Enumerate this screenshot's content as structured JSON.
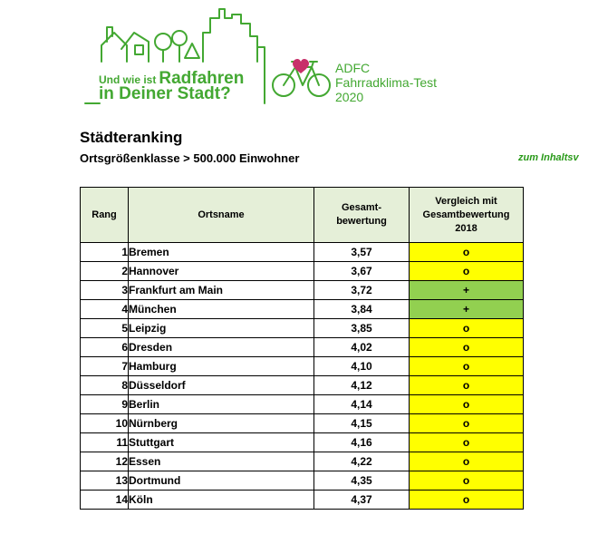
{
  "logo": {
    "tagline_prefix": "Und wie ist",
    "tagline_highlight": "Radfahren",
    "tagline_line2": "in Deiner Stadt?",
    "adfc_line1": "ADFC",
    "adfc_line2": "Fahrradklima-Test",
    "adfc_line3": "2020",
    "green": "#43a832",
    "heart": "#c8306a"
  },
  "title": "Städteranking",
  "subtitle": "Ortsgrößenklasse > 500.000 Einwohner",
  "toc_link": "zum Inhaltsv",
  "table": {
    "headers": {
      "rank": "Rang",
      "name": "Ortsname",
      "score": "Gesamt-\nbewertung",
      "comparison": "Vergleich mit\nGesamtbewertung\n2018"
    },
    "rows": [
      {
        "rank": "1",
        "name": "Bremen",
        "score": "3,57",
        "cmp": "o"
      },
      {
        "rank": "2",
        "name": "Hannover",
        "score": "3,67",
        "cmp": "o"
      },
      {
        "rank": "3",
        "name": "Frankfurt am Main",
        "score": "3,72",
        "cmp": "+"
      },
      {
        "rank": "4",
        "name": "München",
        "score": "3,84",
        "cmp": "+"
      },
      {
        "rank": "5",
        "name": "Leipzig",
        "score": "3,85",
        "cmp": "o"
      },
      {
        "rank": "6",
        "name": "Dresden",
        "score": "4,02",
        "cmp": "o"
      },
      {
        "rank": "7",
        "name": "Hamburg",
        "score": "4,10",
        "cmp": "o"
      },
      {
        "rank": "8",
        "name": "Düsseldorf",
        "score": "4,12",
        "cmp": "o"
      },
      {
        "rank": "9",
        "name": "Berlin",
        "score": "4,14",
        "cmp": "o"
      },
      {
        "rank": "10",
        "name": "Nürnberg",
        "score": "4,15",
        "cmp": "o"
      },
      {
        "rank": "11",
        "name": "Stuttgart",
        "score": "4,16",
        "cmp": "o"
      },
      {
        "rank": "12",
        "name": "Essen",
        "score": "4,22",
        "cmp": "o"
      },
      {
        "rank": "13",
        "name": "Dortmund",
        "score": "4,35",
        "cmp": "o"
      },
      {
        "rank": "14",
        "name": "Köln",
        "score": "4,37",
        "cmp": "o"
      }
    ],
    "colors": {
      "header_bg": "#e5efd8",
      "same": "#ffff00",
      "better": "#92d050"
    }
  }
}
